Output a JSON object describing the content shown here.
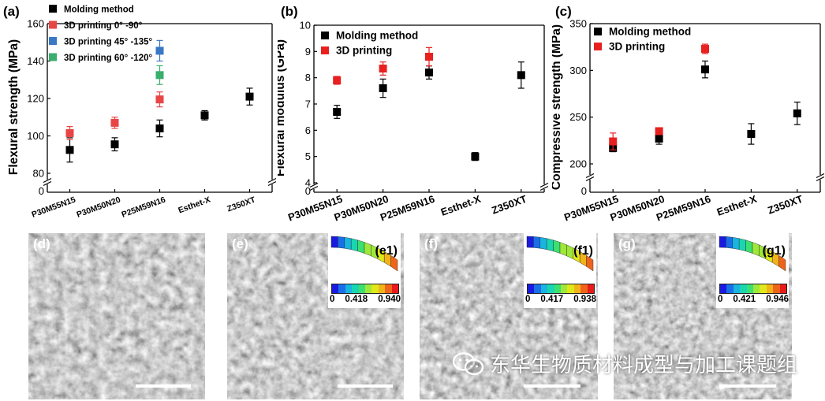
{
  "chart_data": [
    {
      "type": "scatter",
      "panel": "(a)",
      "ylabel": "Flexural strength (MPa)",
      "ylim": [
        80,
        160
      ],
      "yticks": [
        80,
        100,
        120,
        140,
        160
      ],
      "ybreak_label": "0",
      "categories": [
        "P30M55N15",
        "P30M50N20",
        "P25M59N16",
        "Esthet-X",
        "Z350XT"
      ],
      "legend": [
        "Molding method",
        "3D printing 0° -90°",
        "3D printing 45° -135°",
        "3D printing 60° -120°"
      ],
      "series": [
        {
          "name": "Molding method",
          "color": "#000000",
          "values": [
            92.5,
            95.5,
            104,
            111,
            121
          ],
          "errors": [
            6.5,
            3.5,
            4.5,
            2.5,
            4.5
          ]
        },
        {
          "name": "3D printing 0° -90°",
          "color": "#e84646",
          "values": [
            101.5,
            107,
            119.5,
            null,
            null
          ],
          "errors": [
            3.5,
            3,
            4,
            null,
            null
          ]
        },
        {
          "name": "3D printing 45° -135°",
          "color": "#3978c5",
          "values": [
            null,
            null,
            145.5,
            null,
            null
          ],
          "errors": [
            null,
            null,
            5.5,
            null,
            null
          ]
        },
        {
          "name": "3D printing 60° -120°",
          "color": "#3aae6d",
          "values": [
            null,
            null,
            132.5,
            null,
            null
          ],
          "errors": [
            null,
            null,
            5,
            null,
            null
          ]
        }
      ]
    },
    {
      "type": "scatter",
      "panel": "(b)",
      "ylabel": "Flexural modulus (GPa)",
      "ylim": [
        4,
        10
      ],
      "yticks": [
        4,
        5,
        6,
        7,
        8,
        9,
        10
      ],
      "ybreak_label": "0",
      "categories": [
        "P30M55N15",
        "P30M50N20",
        "P25M59N16",
        "Esthet-X",
        "Z350XT"
      ],
      "legend": [
        "Molding method",
        "3D printing"
      ],
      "series": [
        {
          "name": "Molding method",
          "color": "#000000",
          "values": [
            6.7,
            7.6,
            8.2,
            5.0,
            8.1
          ],
          "errors": [
            0.25,
            0.35,
            0.25,
            0.15,
            0.5
          ]
        },
        {
          "name": "3D printing",
          "color": "#e82020",
          "values": [
            7.9,
            8.35,
            8.8,
            null,
            null
          ],
          "errors": [
            0.15,
            0.25,
            0.35,
            null,
            null
          ]
        }
      ]
    },
    {
      "type": "scatter",
      "panel": "(c)",
      "ylabel": "Compressive strength (MPa)",
      "ylim": [
        200,
        350
      ],
      "yticks": [
        200,
        250,
        300,
        350
      ],
      "ybreak_label": "0",
      "categories": [
        "P30M55N15",
        "P30M50N20",
        "P25M59N16",
        "Esthet-X",
        "Z350XT"
      ],
      "legend": [
        "Molding method",
        "3D printing"
      ],
      "series": [
        {
          "name": "Molding method",
          "color": "#000000",
          "values": [
            217,
            227,
            301,
            232,
            254
          ],
          "errors": [
            4,
            6,
            9,
            11,
            12
          ]
        },
        {
          "name": "3D printing",
          "color": "#e82020",
          "values": [
            224,
            235,
            323,
            null,
            null
          ],
          "errors": [
            9,
            3,
            5,
            null,
            null
          ]
        }
      ]
    }
  ],
  "sem_panels": [
    {
      "label": "(d)"
    },
    {
      "label": "(e)",
      "inset_label": "(e1)",
      "scale": [
        "0",
        "0.418",
        "0.940"
      ]
    },
    {
      "label": "(f)",
      "inset_label": "(f1)",
      "scale": [
        "0",
        "0.417",
        "0.938"
      ]
    },
    {
      "label": "(g)",
      "inset_label": "(g1)",
      "scale": [
        "0",
        "0.421",
        "0.946"
      ]
    }
  ],
  "watermark": "东华生物质材料成型与加工课题组",
  "colorbar_colors": [
    "#1a1ae0",
    "#1a6fe8",
    "#19b4e0",
    "#19d6b0",
    "#3de070",
    "#9ee83a",
    "#e0e81a",
    "#f0b41a",
    "#f0641a",
    "#e81a1a"
  ]
}
